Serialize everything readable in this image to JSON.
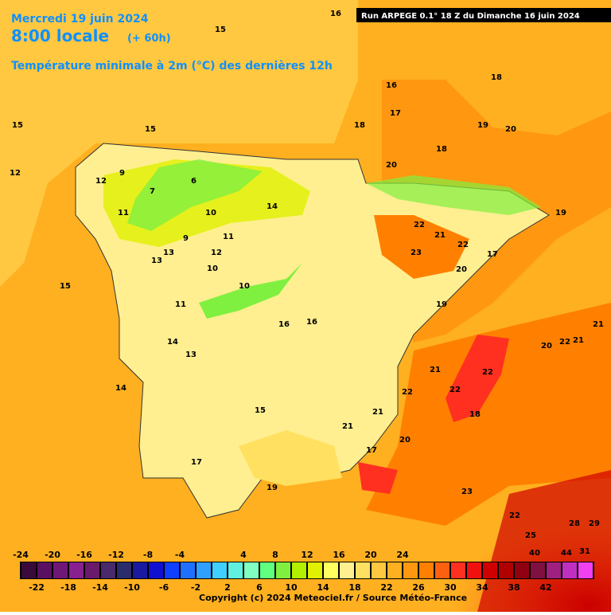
{
  "header": {
    "date": "Mercredi 19 juin 2024",
    "time": "8:00 locale",
    "lead": "(+ 60h)",
    "field": "Température minimale à 2m (°C) des dernières 12h",
    "run": "Run ARPEGE 0.1° 18 Z du Dimanche 16 juin 2024"
  },
  "colorbar": {
    "start": -24,
    "step": 2,
    "colors": [
      "#3a0a3a",
      "#5a1060",
      "#701878",
      "#882090",
      "#6a1a6a",
      "#4a2a6a",
      "#2c2c6c",
      "#1a1aa0",
      "#1010d0",
      "#1040ff",
      "#2070ff",
      "#30a0ff",
      "#40d0ff",
      "#60f0e0",
      "#80ffc0",
      "#60ff80",
      "#80f040",
      "#b0f000",
      "#e0f000",
      "#ffff60",
      "#ffef90",
      "#ffe060",
      "#ffc840",
      "#ffb020",
      "#ff9810",
      "#ff8000",
      "#ff6010",
      "#ff3020",
      "#f01010",
      "#d00000",
      "#b00000",
      "#900010",
      "#801040",
      "#a02080",
      "#c030c0",
      "#f040f0"
    ],
    "top_labels": [
      -24,
      -20,
      -16,
      -12,
      -8,
      -4,
      4,
      8,
      12,
      16,
      20,
      24
    ],
    "bottom_labels": [
      -22,
      -18,
      -14,
      -10,
      -6,
      -2,
      2,
      6,
      10,
      14,
      18,
      22,
      26,
      30,
      34,
      38,
      42
    ]
  },
  "map_labels": [
    15,
    16,
    15,
    17,
    18,
    16,
    15,
    15,
    18,
    19,
    20,
    18,
    9,
    7,
    6,
    10,
    11,
    12,
    14,
    11,
    12,
    10,
    13,
    9,
    13,
    12,
    10,
    11,
    16,
    14,
    14,
    13,
    16,
    15,
    17,
    19,
    20,
    22,
    21,
    22,
    23,
    20,
    19,
    17,
    22,
    21,
    22,
    21,
    22,
    21,
    20,
    18,
    17,
    20,
    22,
    21,
    23,
    22,
    25,
    28,
    29,
    31,
    40,
    44,
    21,
    19
  ],
  "copyright": "Copyright (c) 2024 Meteociel.fr / Source Météo-France"
}
